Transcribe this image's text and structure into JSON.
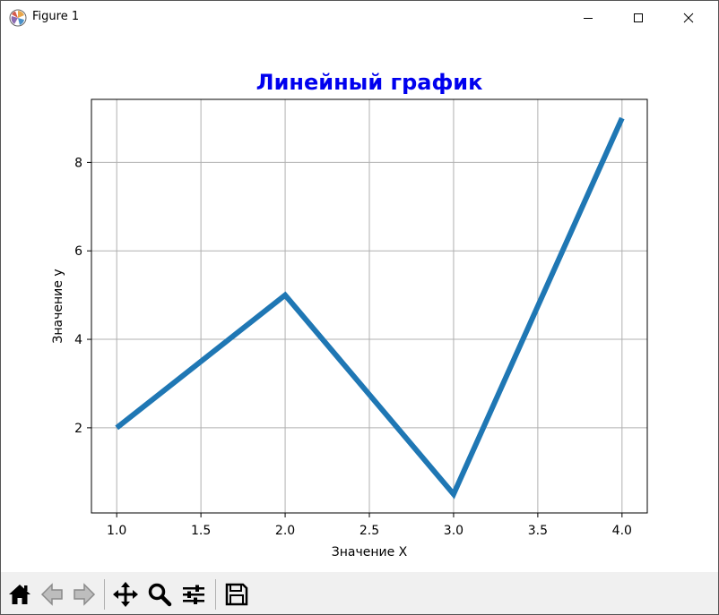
{
  "window": {
    "title": "Figure 1",
    "title_icon": "matplotlib-icon",
    "controls": [
      "minimize-icon",
      "maximize-icon",
      "close-icon"
    ]
  },
  "toolbar": {
    "buttons": [
      "home-icon",
      "back-icon",
      "forward-icon",
      "pan-icon",
      "zoom-icon",
      "configure-subplots-icon",
      "save-icon"
    ]
  },
  "chart_data": {
    "type": "line",
    "title": "Линейный график",
    "title_color": "#0000ee",
    "xlabel": "Значение X",
    "ylabel": "Значение y",
    "x": [
      1,
      2,
      3,
      4
    ],
    "series": [
      {
        "values": [
          2,
          5,
          0.5,
          9
        ],
        "color": "#1f77b4"
      }
    ],
    "x_ticks": [
      "1.0",
      "1.5",
      "2.0",
      "2.5",
      "3.0",
      "3.5",
      "4.0"
    ],
    "y_ticks": [
      "2",
      "4",
      "6",
      "8"
    ],
    "xlim": [
      0.85,
      4.15
    ],
    "ylim": [
      0.075,
      9.425
    ],
    "grid": true
  }
}
